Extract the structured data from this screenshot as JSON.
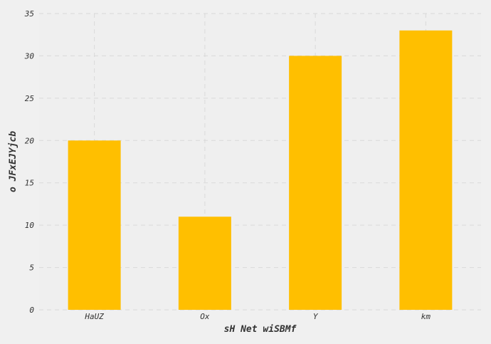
{
  "chart_data": {
    "type": "bar",
    "categories": [
      "HaUZ",
      "Ox",
      "Y",
      "km"
    ],
    "values": [
      20,
      11,
      30,
      33
    ],
    "title": "",
    "xlabel": "sH Net wiSBMf",
    "ylabel": "o JFxEJYjcb",
    "ylim": [
      0,
      35
    ],
    "yticks": [
      0,
      5,
      10,
      15,
      20,
      25,
      30,
      35
    ],
    "grid": true,
    "legend": "none",
    "bar_color": "#ffbf00",
    "background_color": "#efefef"
  }
}
